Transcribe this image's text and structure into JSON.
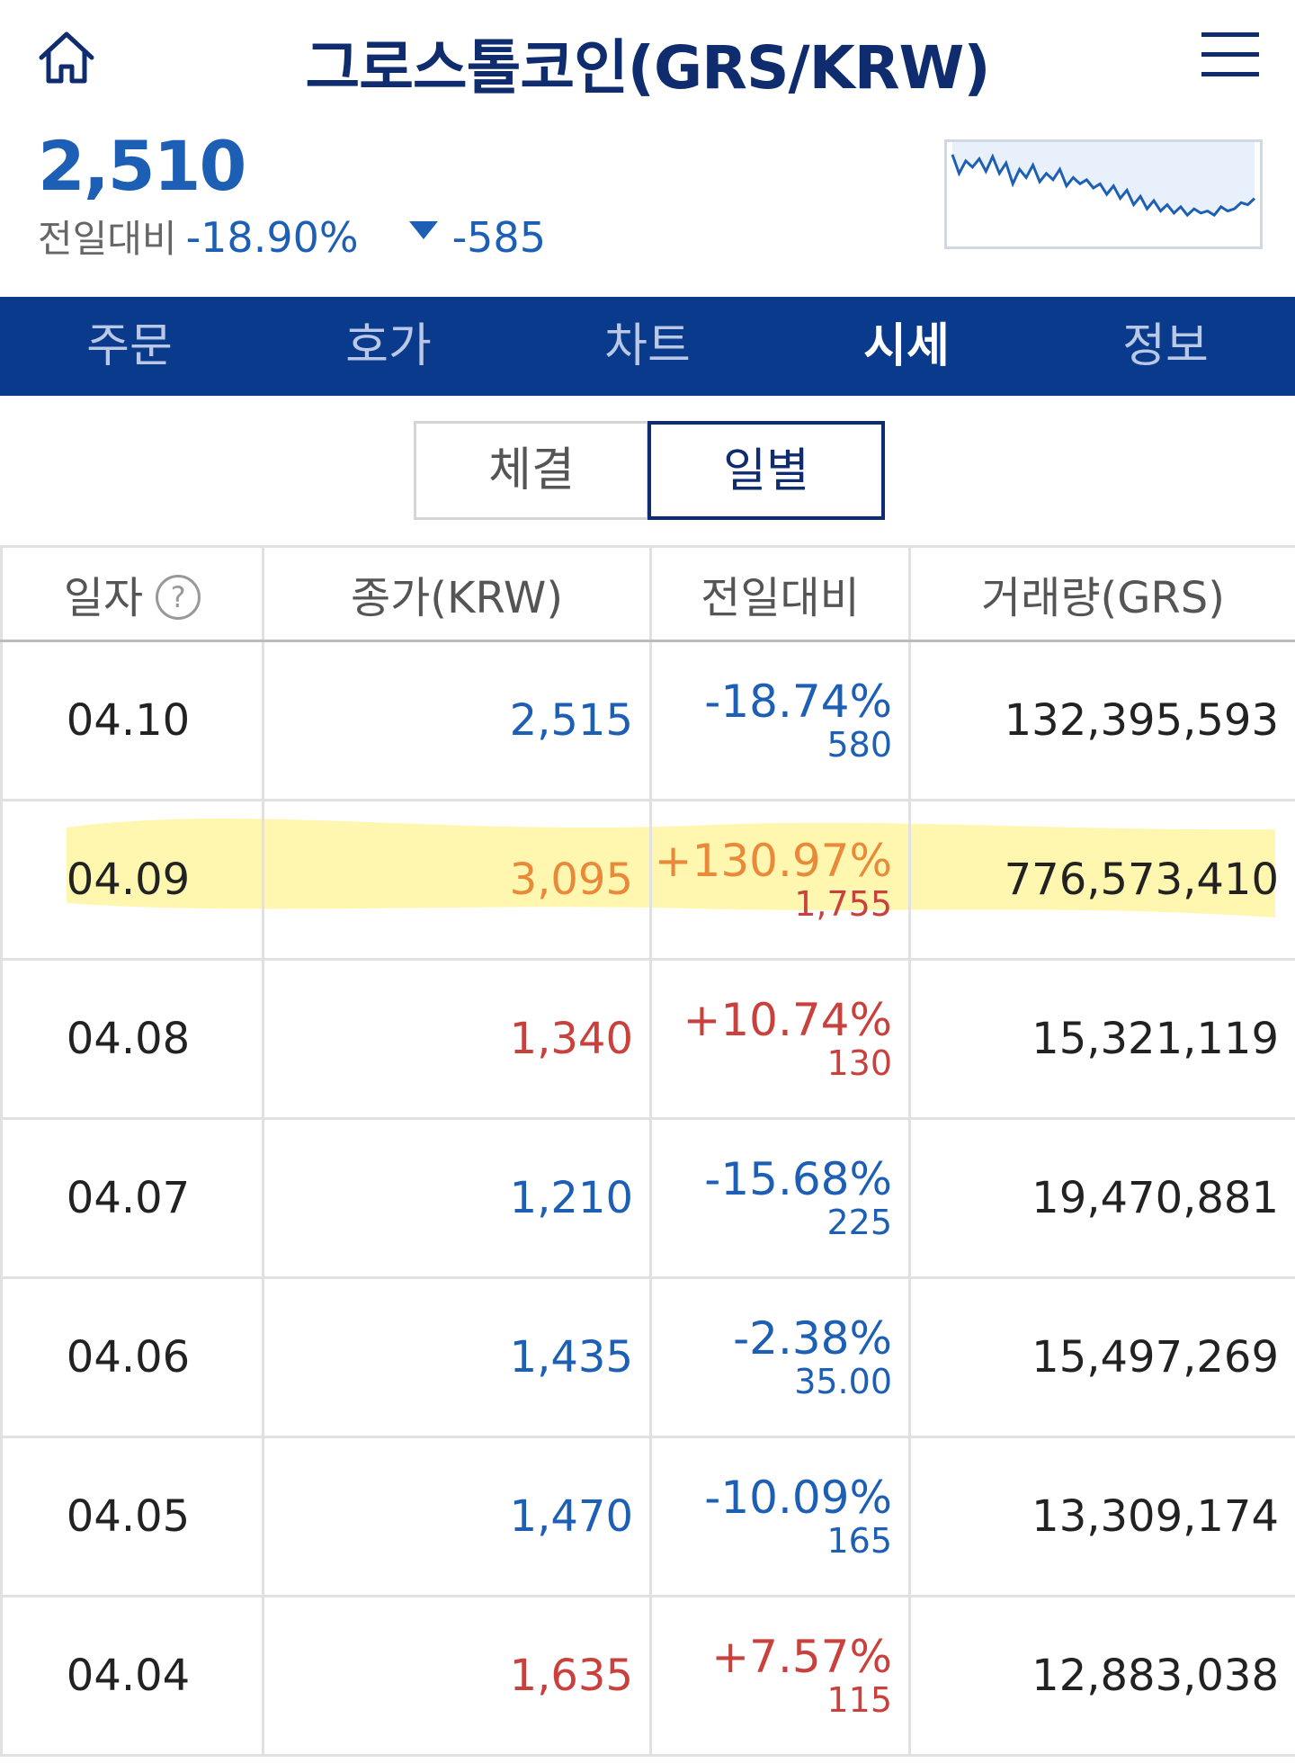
{
  "header": {
    "title": "그로스톨코인(GRS/KRW)"
  },
  "price": {
    "current": "2,510",
    "change_label": "전일대비",
    "change_pct": "-18.90%",
    "change_amount": "-585"
  },
  "mini_chart": {
    "line_color": "#1d5fb5",
    "fill_color": "#e8f0fb",
    "values": [
      88,
      70,
      82,
      76,
      84,
      72,
      86,
      70,
      80,
      60,
      74,
      66,
      78,
      62,
      70,
      64,
      74,
      58,
      66,
      60,
      64,
      56,
      60,
      50,
      58,
      46,
      54,
      40,
      48,
      36,
      44,
      34,
      40,
      32,
      38,
      30,
      36,
      32,
      34,
      30,
      38,
      34,
      36,
      42,
      40,
      46
    ]
  },
  "tabs": [
    {
      "label": "주문",
      "active": false
    },
    {
      "label": "호가",
      "active": false
    },
    {
      "label": "차트",
      "active": false
    },
    {
      "label": "시세",
      "active": true
    },
    {
      "label": "정보",
      "active": false
    }
  ],
  "segments": {
    "trades": "체결",
    "daily": "일별",
    "selected": "daily"
  },
  "table": {
    "headers": {
      "date": "일자",
      "close": "종가(KRW)",
      "change": "전일대비",
      "volume": "거래량(GRS)"
    },
    "help_icon": "?",
    "rows": [
      {
        "date": "04.10",
        "close": "2,515",
        "change_pct": "-18.74%",
        "change_amt": "580",
        "volume": "132,395,593",
        "color": "blue"
      },
      {
        "date": "04.09",
        "close": "3,095",
        "change_pct": "+130.97%",
        "change_amt": "1,755",
        "volume": "776,573,410",
        "color": "red"
      },
      {
        "date": "04.08",
        "close": "1,340",
        "change_pct": "+10.74%",
        "change_amt": "130",
        "volume": "15,321,119",
        "color": "red"
      },
      {
        "date": "04.07",
        "close": "1,210",
        "change_pct": "-15.68%",
        "change_amt": "225",
        "volume": "19,470,881",
        "color": "blue"
      },
      {
        "date": "04.06",
        "close": "1,435",
        "change_pct": "-2.38%",
        "change_amt": "35.00",
        "volume": "15,497,269",
        "color": "blue"
      },
      {
        "date": "04.05",
        "close": "1,470",
        "change_pct": "-10.09%",
        "change_amt": "165",
        "volume": "13,309,174",
        "color": "blue"
      },
      {
        "date": "04.04",
        "close": "1,635",
        "change_pct": "+7.57%",
        "change_amt": "115",
        "volume": "12,883,038",
        "color": "red"
      }
    ]
  },
  "colors": {
    "brand": "#0f2c6e",
    "tabbar": "#0a3a8c",
    "down": "#1d5fb5",
    "up": "#c9413c",
    "highlighter": "#fff27a"
  }
}
